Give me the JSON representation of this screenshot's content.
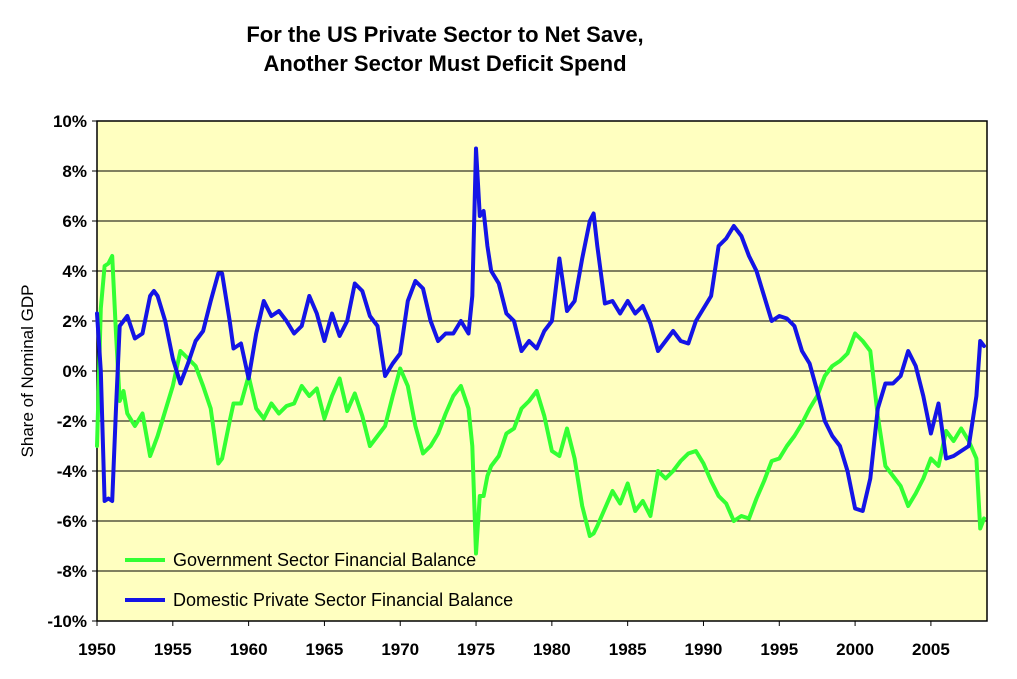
{
  "chart_data": {
    "type": "line",
    "title": "For the US Private Sector to Net Save,",
    "subtitle": "Another Sector Must Deficit Spend",
    "ylabel": "Share of Nominal GDP",
    "xlabel": "",
    "xlim": [
      1950,
      2008.7
    ],
    "ylim": [
      -10,
      10
    ],
    "x_ticks": [
      "1950",
      "1955",
      "1960",
      "1965",
      "1970",
      "1975",
      "1980",
      "1985",
      "1990",
      "1995",
      "2000",
      "2005"
    ],
    "y_ticks": [
      "10%",
      "8%",
      "6%",
      "4%",
      "2%",
      "0%",
      "-2%",
      "-4%",
      "-6%",
      "-8%",
      "-10%"
    ],
    "grid": true,
    "legend_position": "bottom-left",
    "plot_background": "#FFFFC0",
    "series": [
      {
        "name": "Government Sector Financial Balance",
        "color": "#33FF33",
        "x": [
          1950.0,
          1950.25,
          1950.5,
          1950.75,
          1951.0,
          1951.25,
          1951.5,
          1951.75,
          1952.0,
          1952.5,
          1953.0,
          1953.5,
          1953.75,
          1954.0,
          1954.5,
          1955.0,
          1955.5,
          1956.0,
          1956.5,
          1957.0,
          1957.5,
          1958.0,
          1958.25,
          1958.75,
          1959.0,
          1959.5,
          1960.0,
          1960.5,
          1961.0,
          1961.5,
          1962.0,
          1962.5,
          1963.0,
          1963.5,
          1964.0,
          1964.5,
          1965.0,
          1965.5,
          1966.0,
          1966.5,
          1967.0,
          1967.5,
          1968.0,
          1968.5,
          1969.0,
          1969.5,
          1970.0,
          1970.5,
          1971.0,
          1971.5,
          1972.0,
          1972.5,
          1973.0,
          1973.5,
          1974.0,
          1974.5,
          1974.75,
          1975.0,
          1975.25,
          1975.5,
          1975.75,
          1976.0,
          1976.5,
          1977.0,
          1977.5,
          1978.0,
          1978.5,
          1979.0,
          1979.5,
          1980.0,
          1980.5,
          1981.0,
          1981.5,
          1982.0,
          1982.5,
          1982.75,
          1983.0,
          1983.5,
          1984.0,
          1984.5,
          1985.0,
          1985.5,
          1986.0,
          1986.5,
          1987.0,
          1987.5,
          1988.0,
          1988.5,
          1989.0,
          1989.5,
          1990.0,
          1990.5,
          1991.0,
          1991.5,
          1992.0,
          1992.5,
          1993.0,
          1993.5,
          1994.0,
          1994.5,
          1995.0,
          1995.5,
          1996.0,
          1996.5,
          1997.0,
          1997.5,
          1998.0,
          1998.5,
          1999.0,
          1999.5,
          2000.0,
          2000.5,
          2001.0,
          2001.5,
          2002.0,
          2002.5,
          2003.0,
          2003.5,
          2004.0,
          2004.5,
          2005.0,
          2005.5,
          2006.0,
          2006.5,
          2007.0,
          2007.5,
          2008.0,
          2008.25,
          2008.5
        ],
        "values": [
          -3.0,
          2.5,
          4.2,
          4.3,
          4.6,
          1.5,
          -1.2,
          -0.8,
          -1.7,
          -2.2,
          -1.7,
          -3.4,
          -3.0,
          -2.6,
          -1.6,
          -0.6,
          0.8,
          0.5,
          0.2,
          -0.6,
          -1.5,
          -3.7,
          -3.5,
          -2.0,
          -1.3,
          -1.3,
          -0.2,
          -1.5,
          -1.9,
          -1.3,
          -1.7,
          -1.4,
          -1.3,
          -0.6,
          -1.0,
          -0.7,
          -1.9,
          -1.0,
          -0.3,
          -1.6,
          -0.9,
          -1.8,
          -3.0,
          -2.6,
          -2.2,
          -1.0,
          0.1,
          -0.6,
          -2.2,
          -3.3,
          -3.0,
          -2.5,
          -1.7,
          -1.0,
          -0.6,
          -1.5,
          -3.0,
          -7.3,
          -5.0,
          -5.0,
          -4.2,
          -3.8,
          -3.4,
          -2.5,
          -2.3,
          -1.5,
          -1.2,
          -0.8,
          -1.8,
          -3.2,
          -3.4,
          -2.3,
          -3.5,
          -5.4,
          -6.6,
          -6.5,
          -6.2,
          -5.5,
          -4.8,
          -5.3,
          -4.5,
          -5.6,
          -5.2,
          -5.8,
          -4.0,
          -4.3,
          -4.0,
          -3.6,
          -3.3,
          -3.2,
          -3.7,
          -4.4,
          -5.0,
          -5.3,
          -6.0,
          -5.8,
          -5.9,
          -5.1,
          -4.4,
          -3.6,
          -3.5,
          -3.0,
          -2.6,
          -2.1,
          -1.5,
          -1.0,
          -0.2,
          0.2,
          0.4,
          0.7,
          1.5,
          1.2,
          0.8,
          -1.8,
          -3.8,
          -4.2,
          -4.6,
          -5.4,
          -4.9,
          -4.3,
          -3.5,
          -3.8,
          -2.4,
          -2.8,
          -2.3,
          -2.8,
          -3.5,
          -6.3,
          -5.9
        ]
      },
      {
        "name": "Domestic Private Sector Financial Balance",
        "color": "#1414E6",
        "x": [
          1950.0,
          1950.25,
          1950.5,
          1950.75,
          1951.0,
          1951.25,
          1951.5,
          1951.75,
          1952.0,
          1952.5,
          1953.0,
          1953.5,
          1953.75,
          1954.0,
          1954.5,
          1955.0,
          1955.5,
          1956.0,
          1956.5,
          1957.0,
          1957.5,
          1958.0,
          1958.25,
          1958.75,
          1959.0,
          1959.5,
          1960.0,
          1960.5,
          1961.0,
          1961.5,
          1962.0,
          1962.5,
          1963.0,
          1963.5,
          1964.0,
          1964.5,
          1965.0,
          1965.5,
          1966.0,
          1966.5,
          1967.0,
          1967.5,
          1968.0,
          1968.5,
          1969.0,
          1969.5,
          1970.0,
          1970.5,
          1971.0,
          1971.5,
          1972.0,
          1972.5,
          1973.0,
          1973.5,
          1974.0,
          1974.5,
          1974.75,
          1975.0,
          1975.25,
          1975.5,
          1975.75,
          1976.0,
          1976.5,
          1977.0,
          1977.5,
          1978.0,
          1978.5,
          1979.0,
          1979.5,
          1980.0,
          1980.5,
          1981.0,
          1981.5,
          1982.0,
          1982.5,
          1982.75,
          1983.0,
          1983.5,
          1984.0,
          1984.5,
          1985.0,
          1985.5,
          1986.0,
          1986.5,
          1987.0,
          1987.5,
          1988.0,
          1988.5,
          1989.0,
          1989.5,
          1990.0,
          1990.5,
          1991.0,
          1991.5,
          1992.0,
          1992.5,
          1993.0,
          1993.5,
          1994.0,
          1994.5,
          1995.0,
          1995.5,
          1996.0,
          1996.5,
          1997.0,
          1997.5,
          1998.0,
          1998.5,
          1999.0,
          1999.5,
          2000.0,
          2000.5,
          2001.0,
          2001.5,
          2002.0,
          2002.5,
          2003.0,
          2003.5,
          2004.0,
          2004.5,
          2005.0,
          2005.5,
          2006.0,
          2006.5,
          2007.0,
          2007.5,
          2008.0,
          2008.25,
          2008.5
        ],
        "values": [
          2.3,
          0.0,
          -5.2,
          -5.1,
          -5.2,
          -1.5,
          1.8,
          2.0,
          2.2,
          1.3,
          1.5,
          3.0,
          3.2,
          3.0,
          2.0,
          0.5,
          -0.5,
          0.3,
          1.2,
          1.6,
          2.8,
          3.9,
          3.9,
          2.0,
          0.9,
          1.1,
          -0.3,
          1.5,
          2.8,
          2.2,
          2.4,
          2.0,
          1.5,
          1.8,
          3.0,
          2.3,
          1.2,
          2.3,
          1.4,
          2.0,
          3.5,
          3.2,
          2.2,
          1.8,
          -0.2,
          0.3,
          0.7,
          2.8,
          3.6,
          3.3,
          2.0,
          1.2,
          1.5,
          1.5,
          2.0,
          1.5,
          3.0,
          8.9,
          6.2,
          6.4,
          5.0,
          4.0,
          3.5,
          2.3,
          2.0,
          0.8,
          1.2,
          0.9,
          1.6,
          2.0,
          4.5,
          2.4,
          2.8,
          4.5,
          6.0,
          6.3,
          5.0,
          2.7,
          2.8,
          2.3,
          2.8,
          2.3,
          2.6,
          1.9,
          0.8,
          1.2,
          1.6,
          1.2,
          1.1,
          2.0,
          2.5,
          3.0,
          5.0,
          5.3,
          5.8,
          5.4,
          4.6,
          4.0,
          3.0,
          2.0,
          2.2,
          2.1,
          1.8,
          0.8,
          0.3,
          -0.8,
          -2.0,
          -2.6,
          -3.0,
          -4.0,
          -5.5,
          -5.6,
          -4.3,
          -1.5,
          -0.5,
          -0.5,
          -0.2,
          0.8,
          0.2,
          -1.0,
          -2.5,
          -1.3,
          -3.5,
          -3.4,
          -3.2,
          -3.0,
          -1.0,
          1.2,
          1.0
        ]
      }
    ]
  }
}
